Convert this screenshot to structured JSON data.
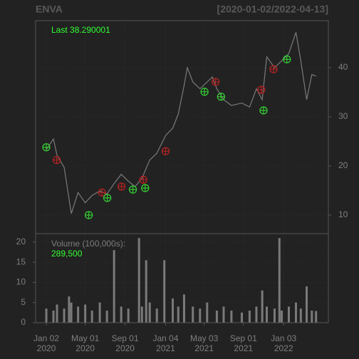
{
  "chart_data": [
    {
      "type": "line",
      "title": "ENVA",
      "subtitle": "[2020-01-02/2022-04-13]",
      "last_label": "Last 38.290001",
      "x": [
        "2020-01-02",
        "2020-01-24",
        "2020-02-04",
        "2020-02-26",
        "2020-03-19",
        "2020-03-30",
        "2020-04-09",
        "2020-05-01",
        "2020-05-22",
        "2020-06-15",
        "2020-07-07",
        "2020-07-29",
        "2020-08-20",
        "2020-09-11",
        "2020-10-02",
        "2020-10-23",
        "2020-11-16",
        "2020-12-08",
        "2021-01-04",
        "2021-01-26",
        "2021-02-12",
        "2021-03-02",
        "2021-03-12",
        "2021-03-29",
        "2021-04-20",
        "2021-05-12",
        "2021-05-28",
        "2021-06-11",
        "2021-07-02",
        "2021-07-26",
        "2021-08-27",
        "2021-09-20",
        "2021-10-11",
        "2021-10-29",
        "2021-11-12",
        "2021-12-06",
        "2021-12-28",
        "2022-01-19",
        "2022-02-10",
        "2022-02-25",
        "2022-03-15",
        "2022-03-31",
        "2022-04-13"
      ],
      "values": [
        23.3,
        25.5,
        22.2,
        19.7,
        10.3,
        12.6,
        14.6,
        12.5,
        14.0,
        14.9,
        14.3,
        16.4,
        18.3,
        16.9,
        15.8,
        17.5,
        21.2,
        22.6,
        26.2,
        27.7,
        30.6,
        36.4,
        40.0,
        37.1,
        35.7,
        37.1,
        38.1,
        35.7,
        33.5,
        32.3,
        32.8,
        32.0,
        35.7,
        33.5,
        42.2,
        40.0,
        41.4,
        42.9,
        47.2,
        41.4,
        33.5,
        38.6,
        38.29
      ],
      "color": "#7a7a7a",
      "buy_signals": {
        "x": [
          "2020-01-02",
          "2020-05-12",
          "2020-07-08",
          "2020-09-25",
          "2020-11-02",
          "2021-05-04",
          "2021-06-24",
          "2021-11-02",
          "2022-01-13"
        ],
        "values": [
          23.8,
          10.0,
          13.5,
          15.2,
          15.5,
          35.1,
          34.1,
          31.3,
          41.7
        ],
        "color": "#33cc33"
      },
      "sell_signals": {
        "x": [
          "2020-02-03",
          "2020-06-22",
          "2020-08-21",
          "2020-10-27",
          "2021-01-04",
          "2021-06-07",
          "2021-10-26",
          "2021-12-03"
        ],
        "values": [
          21.2,
          14.6,
          15.8,
          17.2,
          23.0,
          37.1,
          35.5,
          39.7
        ],
        "color": "#b22222"
      },
      "xlim": [
        "2019-11-30",
        "2022-05-21"
      ],
      "ylim": [
        6.23,
        49.57
      ],
      "yticks": [
        10,
        20,
        30,
        40
      ],
      "grid": true
    },
    {
      "type": "bar",
      "label": "Volume (100,000s):",
      "last_value": 2.895,
      "last_value_label": "289,500",
      "x": [
        "2020-01-02",
        "2020-01-24",
        "2020-02-04",
        "2020-02-26",
        "2020-03-12",
        "2020-03-19",
        "2020-04-09",
        "2020-05-01",
        "2020-05-22",
        "2020-06-15",
        "2020-07-07",
        "2020-07-29",
        "2020-08-20",
        "2020-09-11",
        "2020-10-14",
        "2020-10-23",
        "2020-11-05",
        "2020-11-16",
        "2020-12-08",
        "2020-12-31",
        "2021-01-26",
        "2021-02-12",
        "2021-03-02",
        "2021-03-29",
        "2021-04-20",
        "2021-05-12",
        "2021-06-11",
        "2021-07-02",
        "2021-07-26",
        "2021-08-27",
        "2021-09-20",
        "2021-10-11",
        "2021-10-29",
        "2021-11-12",
        "2021-12-06",
        "2021-12-21",
        "2021-12-28",
        "2022-01-19",
        "2022-02-10",
        "2022-02-25",
        "2022-03-15",
        "2022-03-31",
        "2022-04-13"
      ],
      "values": [
        3.5,
        3,
        4.5,
        3.5,
        6.5,
        5,
        4,
        4.5,
        3,
        5,
        3,
        18,
        4,
        3.5,
        21,
        4,
        15.5,
        5,
        3.5,
        15.5,
        6,
        4,
        7,
        4,
        3.5,
        5,
        3,
        4,
        3,
        2.5,
        3,
        4,
        8,
        4,
        3.5,
        21,
        3,
        4,
        5,
        3.5,
        9,
        3,
        2.895
      ],
      "color": "#7a7a7a",
      "xlim": [
        "2019-11-30",
        "2022-05-21"
      ],
      "ylim": [
        0,
        22.1
      ],
      "yticks": [
        0,
        5,
        10,
        15,
        20
      ],
      "grid": true,
      "xticks": [
        {
          "value": "2020-01-02",
          "label": [
            "Jan 02",
            "2020"
          ]
        },
        {
          "value": "2020-05-01",
          "label": [
            "May 01",
            "2020"
          ]
        },
        {
          "value": "2020-09-01",
          "label": [
            "Sep 01",
            "2020"
          ]
        },
        {
          "value": "2021-01-04",
          "label": [
            "Jan 04",
            "2021"
          ]
        },
        {
          "value": "2021-05-03",
          "label": [
            "May 03",
            "2021"
          ]
        },
        {
          "value": "2021-09-01",
          "label": [
            "Sep 01",
            "2021"
          ]
        },
        {
          "value": "2022-01-03",
          "label": [
            "Jan 03",
            "2022"
          ]
        }
      ]
    }
  ]
}
